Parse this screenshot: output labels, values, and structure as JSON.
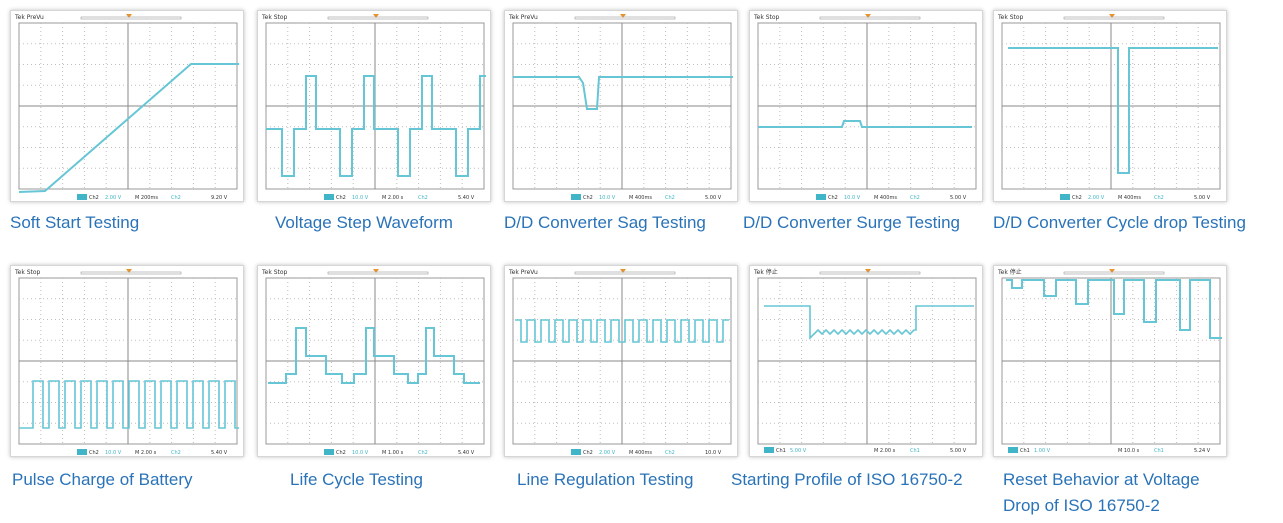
{
  "colors": {
    "trace": "#66c6d6",
    "caption": "#2a73b8",
    "grid": "#bdbdbd"
  },
  "scopes": [
    {
      "caption": "Soft Start Testing",
      "status": "Tek PreVu",
      "ch": "Ch2",
      "volts": "2.00 V",
      "time": "M 200ms",
      "trig_ch": "Ch2",
      "level": "9.20 V"
    },
    {
      "caption": "Voltage Step Waveform",
      "status": "Tek Stop",
      "ch": "Ch2",
      "volts": "10.0 V",
      "time": "M 2.00 s",
      "trig_ch": "Ch2",
      "level": "5.40 V"
    },
    {
      "caption": "D/D Converter Sag Testing",
      "status": "Tek PreVu",
      "ch": "Ch2",
      "volts": "10.0 V",
      "time": "M 400ms",
      "trig_ch": "Ch2",
      "level": "5.00 V"
    },
    {
      "caption": "D/D Converter Surge Testing",
      "status": "Tek Stop",
      "ch": "Ch2",
      "volts": "10.0 V",
      "time": "M 400ms",
      "trig_ch": "Ch2",
      "level": "5.00 V"
    },
    {
      "caption": "D/D Converter Cycle drop Testing",
      "status": "Tek Stop",
      "ch": "Ch2",
      "volts": "2.00 V",
      "time": "M 400ms",
      "trig_ch": "Ch2",
      "level": "5.00 V"
    },
    {
      "caption": "Pulse Charge of Battery",
      "status": "Tek Stop",
      "ch": "Ch2",
      "volts": "10.0 V",
      "time": "M 2.00 s",
      "trig_ch": "Ch2",
      "level": "5.40 V"
    },
    {
      "caption": "Life Cycle Testing",
      "status": "Tek Stop",
      "ch": "Ch2",
      "volts": "10.0 V",
      "time": "M 1.00 s",
      "trig_ch": "Ch2",
      "level": "5.40 V"
    },
    {
      "caption": "Line Regulation Testing",
      "status": "Tek PreVu",
      "ch": "Ch2",
      "volts": "2.00 V",
      "time": "M 400ms",
      "trig_ch": "Ch2",
      "level": "10.0 V"
    },
    {
      "caption": "Starting Profile of ISO 16750-2",
      "status": "Tek 停止",
      "ch": "Ch1",
      "volts": "5.00 V",
      "time": "M 2.00 s",
      "trig_ch": "Ch1",
      "level": "5.00 V"
    },
    {
      "caption": "Reset Behavior at Voltage Drop of ISO 16750-2",
      "status": "Tek 停止",
      "ch": "Ch1",
      "volts": "1.00 V",
      "time": "M 10.0 s",
      "trig_ch": "Ch1",
      "level": "5.24 V"
    }
  ]
}
